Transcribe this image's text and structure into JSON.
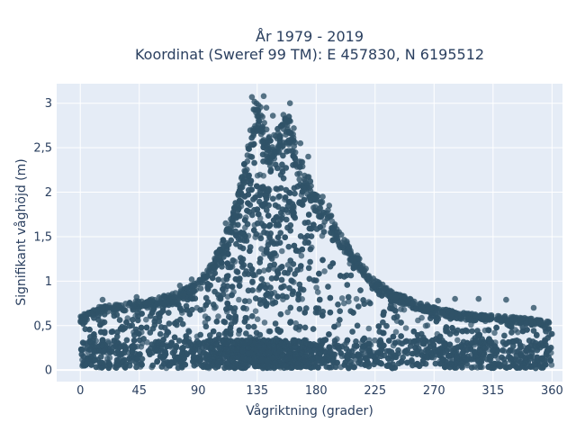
{
  "chart_data": {
    "type": "scatter",
    "title_lines": [
      "År 1979 - 2019",
      "Koordinat (Sweref 99 TM): E 457830, N 6195512"
    ],
    "xlabel": "Vågriktning (grader)",
    "ylabel": "Signifikant våghöjd (m)",
    "xlim": [
      -18,
      368
    ],
    "ylim": [
      -0.13,
      3.22
    ],
    "x_ticks": [
      0,
      45,
      90,
      135,
      180,
      225,
      270,
      315,
      360
    ],
    "x_tick_labels": [
      "0",
      "45",
      "90",
      "135",
      "180",
      "225",
      "270",
      "315",
      "360"
    ],
    "y_ticks": [
      0,
      0.5,
      1,
      1.5,
      2,
      2.5,
      3
    ],
    "y_tick_labels": [
      "0",
      "0,5",
      "1",
      "1,5",
      "2",
      "2,5",
      "3"
    ],
    "grid": true,
    "marker_color": "#2f5268",
    "plot_bgcolor": "#e5ecf6",
    "envelope": {
      "direction_deg": [
        0,
        15,
        30,
        45,
        60,
        75,
        90,
        100,
        110,
        120,
        128,
        133,
        138,
        145,
        150,
        158,
        165,
        172,
        180,
        190,
        200,
        210,
        225,
        240,
        255,
        270,
        285,
        300,
        315,
        330,
        345,
        360
      ],
      "max_height_m": [
        0.6,
        0.72,
        0.74,
        0.78,
        0.82,
        0.88,
        1.0,
        1.2,
        1.5,
        1.95,
        2.55,
        3.05,
        2.95,
        2.6,
        2.7,
        2.95,
        2.5,
        2.25,
        2.0,
        1.78,
        1.52,
        1.32,
        1.02,
        0.88,
        0.78,
        0.72,
        0.66,
        0.63,
        0.62,
        0.6,
        0.58,
        0.55
      ],
      "min_height_m": 0.02
    },
    "outlier_points": [
      {
        "x": 131,
        "y": 3.07
      },
      {
        "x": 140,
        "y": 3.08
      },
      {
        "x": 142,
        "y": 2.95
      },
      {
        "x": 147,
        "y": 2.86
      },
      {
        "x": 155,
        "y": 2.87
      },
      {
        "x": 160,
        "y": 3.0
      },
      {
        "x": 158,
        "y": 2.79
      },
      {
        "x": 163,
        "y": 2.72
      },
      {
        "x": 168,
        "y": 2.55
      },
      {
        "x": 174,
        "y": 2.4
      },
      {
        "x": 177,
        "y": 1.98
      },
      {
        "x": 185,
        "y": 1.95
      },
      {
        "x": 190,
        "y": 1.85
      },
      {
        "x": 196,
        "y": 1.55
      },
      {
        "x": 213,
        "y": 1.25
      },
      {
        "x": 218,
        "y": 1.14
      },
      {
        "x": 236,
        "y": 0.88
      },
      {
        "x": 241,
        "y": 0.82
      },
      {
        "x": 253,
        "y": 0.74
      },
      {
        "x": 273,
        "y": 0.78
      },
      {
        "x": 286,
        "y": 0.8
      },
      {
        "x": 304,
        "y": 0.8
      },
      {
        "x": 325,
        "y": 0.79
      },
      {
        "x": 346,
        "y": 0.7
      },
      {
        "x": 17,
        "y": 0.79
      },
      {
        "x": 28,
        "y": 0.68
      },
      {
        "x": 43,
        "y": 0.82
      },
      {
        "x": 54,
        "y": 0.7
      },
      {
        "x": 76,
        "y": 0.95
      },
      {
        "x": 85,
        "y": 1.02
      },
      {
        "x": 97,
        "y": 1.12
      },
      {
        "x": 104,
        "y": 1.32
      },
      {
        "x": 111,
        "y": 1.65
      },
      {
        "x": 3,
        "y": 0.63
      },
      {
        "x": 9,
        "y": 0.62
      }
    ]
  }
}
